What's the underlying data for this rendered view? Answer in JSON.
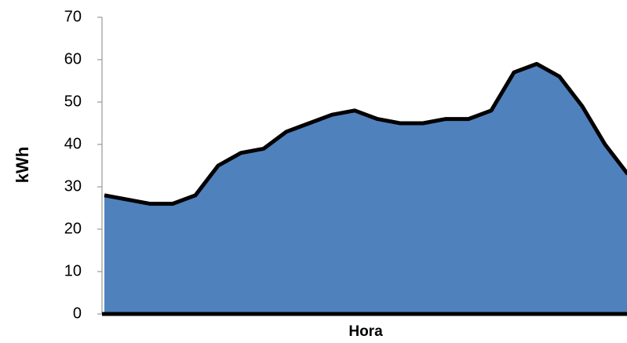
{
  "chart_data": {
    "type": "area",
    "x_label": "Hora",
    "y_label": "kWh",
    "categories": [
      null,
      null,
      null,
      null,
      null,
      null,
      null,
      null,
      null,
      null,
      null,
      null,
      null,
      null,
      null,
      null,
      null,
      null,
      null,
      null,
      null,
      null,
      null,
      null
    ],
    "values": [
      28,
      27,
      26,
      26,
      28,
      35,
      38,
      39,
      43,
      45,
      47,
      48,
      46,
      45,
      45,
      46,
      46,
      48,
      57,
      59,
      56,
      49,
      40,
      33
    ],
    "color": "#4f81bd",
    "line_color": "#000000",
    "ylim": [
      0,
      70
    ],
    "yticks": [
      0,
      10,
      20,
      30,
      40,
      50,
      60,
      70
    ],
    "grid": false
  }
}
